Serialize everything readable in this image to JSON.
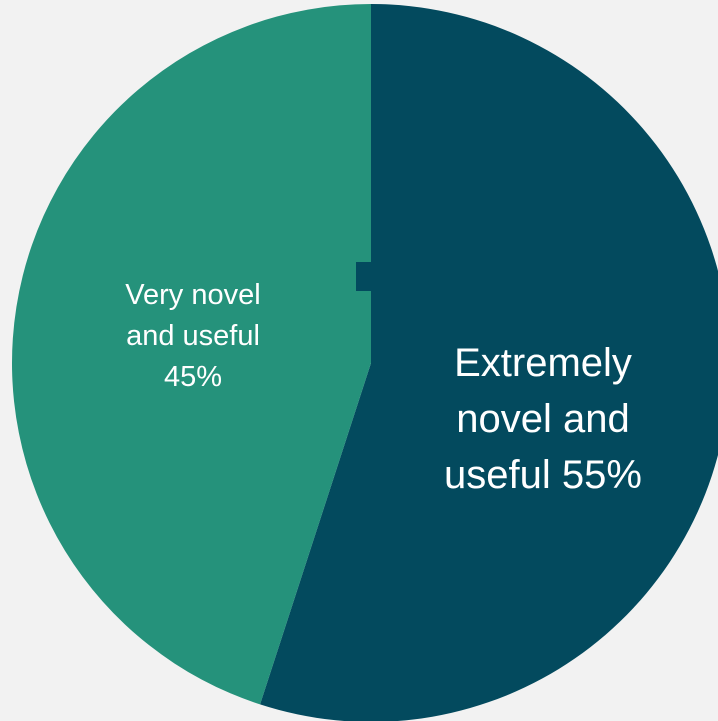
{
  "chart_data": {
    "type": "pie",
    "title": "",
    "slices": [
      {
        "label_lines": [
          "Extremely",
          "novel and",
          "useful 55%"
        ],
        "name": "Extremely novel and useful",
        "value": 55,
        "color": "#034a5e"
      },
      {
        "label_lines": [
          "Very novel",
          "and useful",
          "45%"
        ],
        "name": "Very novel and useful",
        "value": 45,
        "color": "#25927b"
      }
    ],
    "legend": "none",
    "background_color": "#f2f2f2"
  }
}
